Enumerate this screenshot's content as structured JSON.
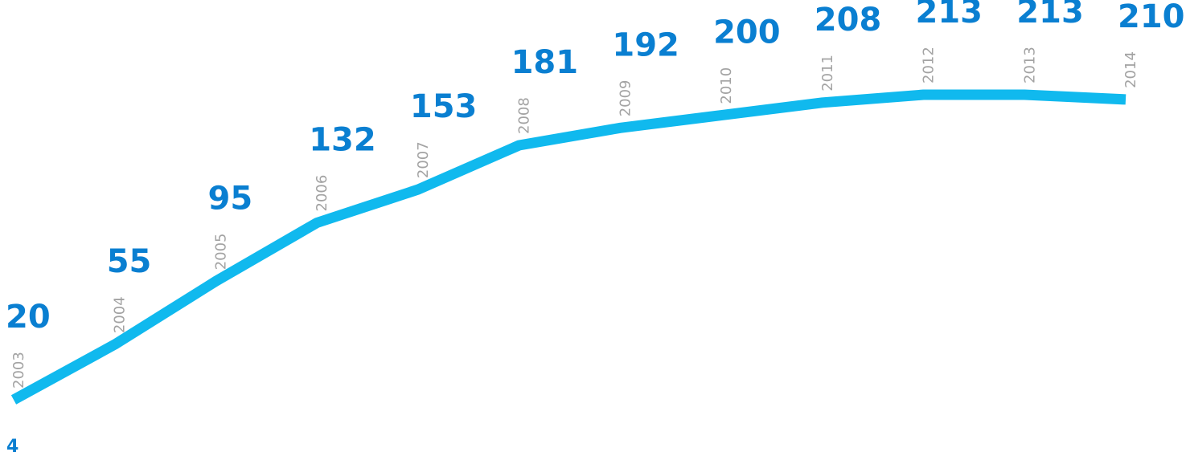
{
  "chart_data": {
    "type": "line",
    "x": [
      "2003",
      "2004",
      "2005",
      "2006",
      "2007",
      "2008",
      "2009",
      "2010",
      "2011",
      "2012",
      "2013",
      "2014"
    ],
    "values": [
      20,
      55,
      95,
      132,
      153,
      181,
      192,
      200,
      208,
      213,
      213,
      210
    ],
    "data_labels": [
      "20",
      "55",
      "95",
      "132",
      "153",
      "181",
      "192",
      "200",
      "208",
      "213",
      "213",
      "210"
    ],
    "title": "",
    "xlabel": "",
    "ylabel": "",
    "grid": false,
    "legend": "none"
  },
  "page_number": "4",
  "colors": {
    "line": "#10B9EE",
    "value_label": "#0A7FD1",
    "year_label": "#A3A3A3",
    "page_number": "#0A7FD1"
  }
}
